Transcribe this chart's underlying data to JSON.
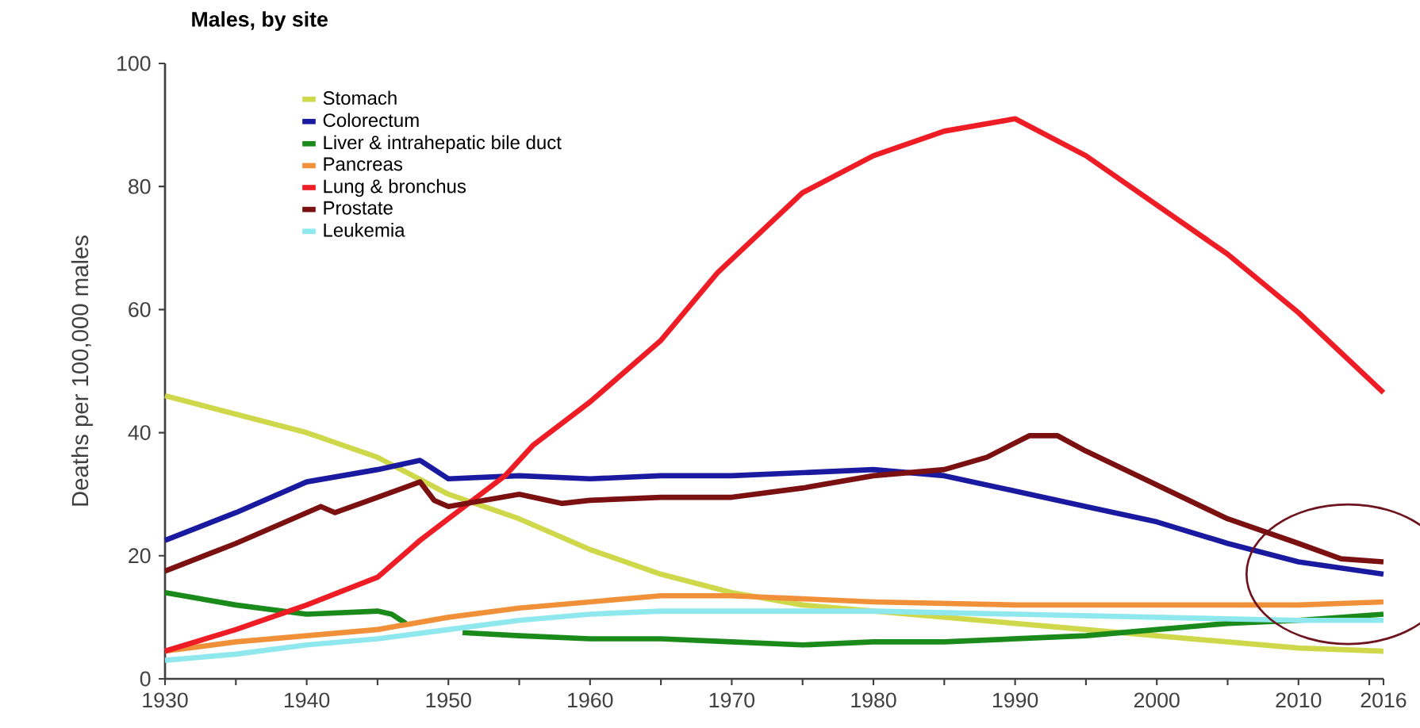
{
  "chart_data": {
    "type": "line",
    "title": "Males, by site",
    "ylabel": "Deaths per 100,000 males",
    "xlim": [
      1930,
      2016
    ],
    "ylim": [
      0,
      100
    ],
    "xticks": [
      1930,
      {
        "value": 1935,
        "label": null
      },
      1940,
      {
        "value": 1945,
        "label": null
      },
      1950,
      {
        "value": 1955,
        "label": null
      },
      1960,
      {
        "value": 1965,
        "label": null
      },
      1970,
      {
        "value": 1975,
        "label": null
      },
      1980,
      {
        "value": 1985,
        "label": null
      },
      1990,
      {
        "value": 1995,
        "label": null
      },
      2000,
      {
        "value": 2005,
        "label": null
      },
      2010,
      {
        "value": 2015,
        "label": null
      },
      2016
    ],
    "yticks": [
      0,
      20,
      40,
      60,
      80,
      100
    ],
    "legend": "top left",
    "series": [
      {
        "name": "Stomach",
        "color": "#cfd84a",
        "x": [
          1930,
          1935,
          1940,
          1945,
          1950,
          1955,
          1960,
          1965,
          1970,
          1975,
          1980,
          1985,
          1990,
          1995,
          2000,
          2005,
          2010,
          2016
        ],
        "values": [
          46,
          43,
          40,
          36,
          30,
          26,
          21,
          17,
          14,
          12,
          11,
          10,
          9,
          8,
          7,
          6,
          5,
          4.5
        ]
      },
      {
        "name": "Colorectum",
        "color": "#1a1aa0",
        "x": [
          1930,
          1935,
          1940,
          1945,
          1948,
          1950,
          1955,
          1960,
          1965,
          1970,
          1975,
          1980,
          1985,
          1990,
          1995,
          2000,
          2005,
          2010,
          2016
        ],
        "values": [
          22.5,
          27,
          32,
          34,
          35.5,
          32.5,
          33,
          32.5,
          33,
          33,
          33.5,
          34,
          33,
          30.5,
          28,
          25.5,
          22,
          19,
          17
        ]
      },
      {
        "name": "Liver & intrahepatic bile duct",
        "color": "#1a8a1a",
        "x": [
          1930,
          1935,
          1940,
          1945,
          1946,
          1947,
          1948,
          1949,
          1950,
          1951,
          1955,
          1960,
          1965,
          1970,
          1975,
          1980,
          1985,
          1990,
          1995,
          2000,
          2005,
          2010,
          2016
        ],
        "values": [
          14,
          12,
          10.5,
          11,
          10.5,
          9,
          null,
          null,
          null,
          7.5,
          7,
          6.5,
          6.5,
          6,
          5.5,
          6,
          6,
          6.5,
          7,
          8,
          9,
          9.5,
          10.5
        ]
      },
      {
        "name": "Pancreas",
        "color": "#f0913a",
        "x": [
          1930,
          1935,
          1940,
          1945,
          1950,
          1955,
          1960,
          1965,
          1970,
          1975,
          1980,
          1990,
          2000,
          2010,
          2016
        ],
        "values": [
          4.5,
          6,
          7,
          8,
          10,
          11.5,
          12.5,
          13.5,
          13.5,
          13,
          12.5,
          12,
          12,
          12,
          12.5
        ]
      },
      {
        "name": "Lung & bronchus",
        "color": "#ee1c25",
        "x": [
          1930,
          1935,
          1940,
          1945,
          1948,
          1950,
          1954,
          1956,
          1960,
          1965,
          1969,
          1975,
          1980,
          1985,
          1990,
          1995,
          2000,
          2005,
          2010,
          2016
        ],
        "values": [
          4.5,
          8,
          12,
          16.5,
          22.5,
          26,
          33,
          38,
          45,
          55,
          66,
          79,
          85,
          89,
          91,
          85,
          77,
          69,
          59.5,
          46.5
        ]
      },
      {
        "name": "Prostate",
        "color": "#7b1010",
        "x": [
          1930,
          1935,
          1940,
          1941,
          1942,
          1945,
          1948,
          1949,
          1950,
          1955,
          1958,
          1960,
          1965,
          1970,
          1975,
          1980,
          1985,
          1988,
          1991,
          1993,
          1995,
          2000,
          2005,
          2010,
          2013,
          2016
        ],
        "values": [
          17.5,
          22,
          27,
          28,
          27,
          29.5,
          32,
          29,
          28,
          30,
          28.5,
          29,
          29.5,
          29.5,
          31,
          33,
          34,
          36,
          39.5,
          39.5,
          37,
          31.5,
          26,
          22,
          19.5,
          19
        ]
      },
      {
        "name": "Leukemia",
        "color": "#8ee8ee",
        "x": [
          1930,
          1935,
          1940,
          1945,
          1950,
          1955,
          1960,
          1965,
          1970,
          1980,
          1990,
          2000,
          2010,
          2016
        ],
        "values": [
          3,
          4,
          5.5,
          6.5,
          8,
          9.5,
          10.5,
          11,
          11,
          11,
          10.5,
          10,
          9.5,
          9.5
        ]
      }
    ]
  }
}
